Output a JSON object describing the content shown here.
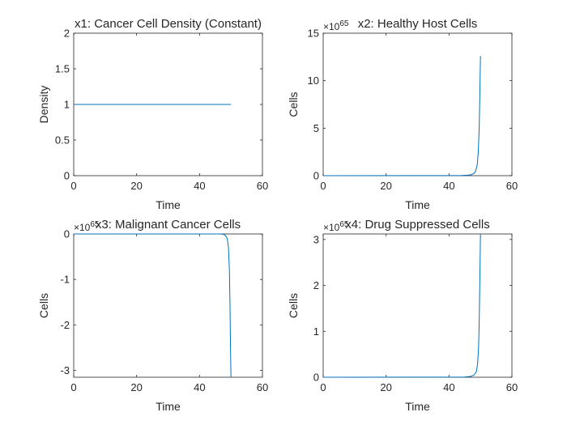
{
  "colors": {
    "line": "#0072BD",
    "axis": "#262626",
    "background": "#ffffff"
  },
  "chart_data": [
    {
      "type": "line",
      "title": "x1: Cancer Cell Density (Constant)",
      "xlabel": "Time",
      "ylabel": "Density",
      "exponent": {
        "base": "×10",
        "power": ""
      },
      "xlim": [
        0,
        60
      ],
      "ylim": [
        0,
        2
      ],
      "xticks": [
        0,
        20,
        40,
        60
      ],
      "xtick_labels": [
        "0",
        "20",
        "40",
        "60"
      ],
      "yticks": [
        0,
        0.5,
        1,
        1.5,
        2
      ],
      "ytick_labels": [
        "0",
        "0.5",
        "1",
        "1.5",
        "2"
      ],
      "grid": false,
      "series": [
        {
          "name": "x1",
          "x": [
            0,
            10,
            20,
            30,
            40,
            50
          ],
          "y": [
            1,
            1,
            1,
            1,
            1,
            1
          ]
        }
      ]
    },
    {
      "type": "line",
      "title": "x2: Healthy Host Cells",
      "xlabel": "Time",
      "ylabel": "Cells",
      "exponent": {
        "base": "×10",
        "power": "65"
      },
      "xlim": [
        0,
        60
      ],
      "ylim": [
        0,
        15
      ],
      "xticks": [
        0,
        20,
        40,
        60
      ],
      "xtick_labels": [
        "0",
        "20",
        "40",
        "60"
      ],
      "yticks": [
        0,
        5,
        10,
        15
      ],
      "ytick_labels": [
        "0",
        "5",
        "10",
        "15"
      ],
      "grid": false,
      "series": [
        {
          "name": "x2",
          "x": [
            0,
            44,
            46,
            47,
            48,
            48.5,
            49,
            49.3,
            49.6,
            49.8,
            50
          ],
          "y": [
            0,
            0.02,
            0.05,
            0.1,
            0.25,
            0.5,
            1.2,
            2.5,
            5.0,
            8.5,
            12.6
          ]
        }
      ]
    },
    {
      "type": "line",
      "title": "x3: Malignant Cancer Cells",
      "xlabel": "Time",
      "ylabel": "Cells",
      "exponent": {
        "base": "×10",
        "power": "65"
      },
      "xlim": [
        0,
        60
      ],
      "ylim": [
        -3.15,
        0
      ],
      "xticks": [
        0,
        20,
        40,
        60
      ],
      "xtick_labels": [
        "0",
        "20",
        "40",
        "60"
      ],
      "yticks": [
        -3,
        -2,
        -1,
        0
      ],
      "ytick_labels": [
        "-3",
        "-2",
        "-1",
        "0"
      ],
      "grid": false,
      "series": [
        {
          "name": "x3",
          "x": [
            0,
            46,
            47.5,
            48.2,
            48.8,
            49.2,
            49.5,
            49.7,
            49.85,
            50
          ],
          "y": [
            0,
            0,
            -0.005,
            -0.03,
            -0.1,
            -0.3,
            -0.8,
            -1.6,
            -2.5,
            -3.15
          ]
        }
      ]
    },
    {
      "type": "line",
      "title": "x4: Drug Suppressed Cells",
      "xlabel": "Time",
      "ylabel": "Cells",
      "exponent": {
        "base": "×10",
        "power": "65"
      },
      "xlim": [
        0,
        60
      ],
      "ylim": [
        0,
        3.12
      ],
      "xticks": [
        0,
        20,
        40,
        60
      ],
      "xtick_labels": [
        "0",
        "20",
        "40",
        "60"
      ],
      "yticks": [
        0,
        1,
        2,
        3
      ],
      "ytick_labels": [
        "0",
        "1",
        "2",
        "3"
      ],
      "grid": false,
      "series": [
        {
          "name": "x4",
          "x": [
            0,
            45,
            47,
            48,
            48.7,
            49.1,
            49.4,
            49.6,
            49.8,
            50
          ],
          "y": [
            0,
            0.005,
            0.02,
            0.05,
            0.12,
            0.3,
            0.65,
            1.2,
            2.1,
            3.12
          ]
        }
      ]
    }
  ]
}
